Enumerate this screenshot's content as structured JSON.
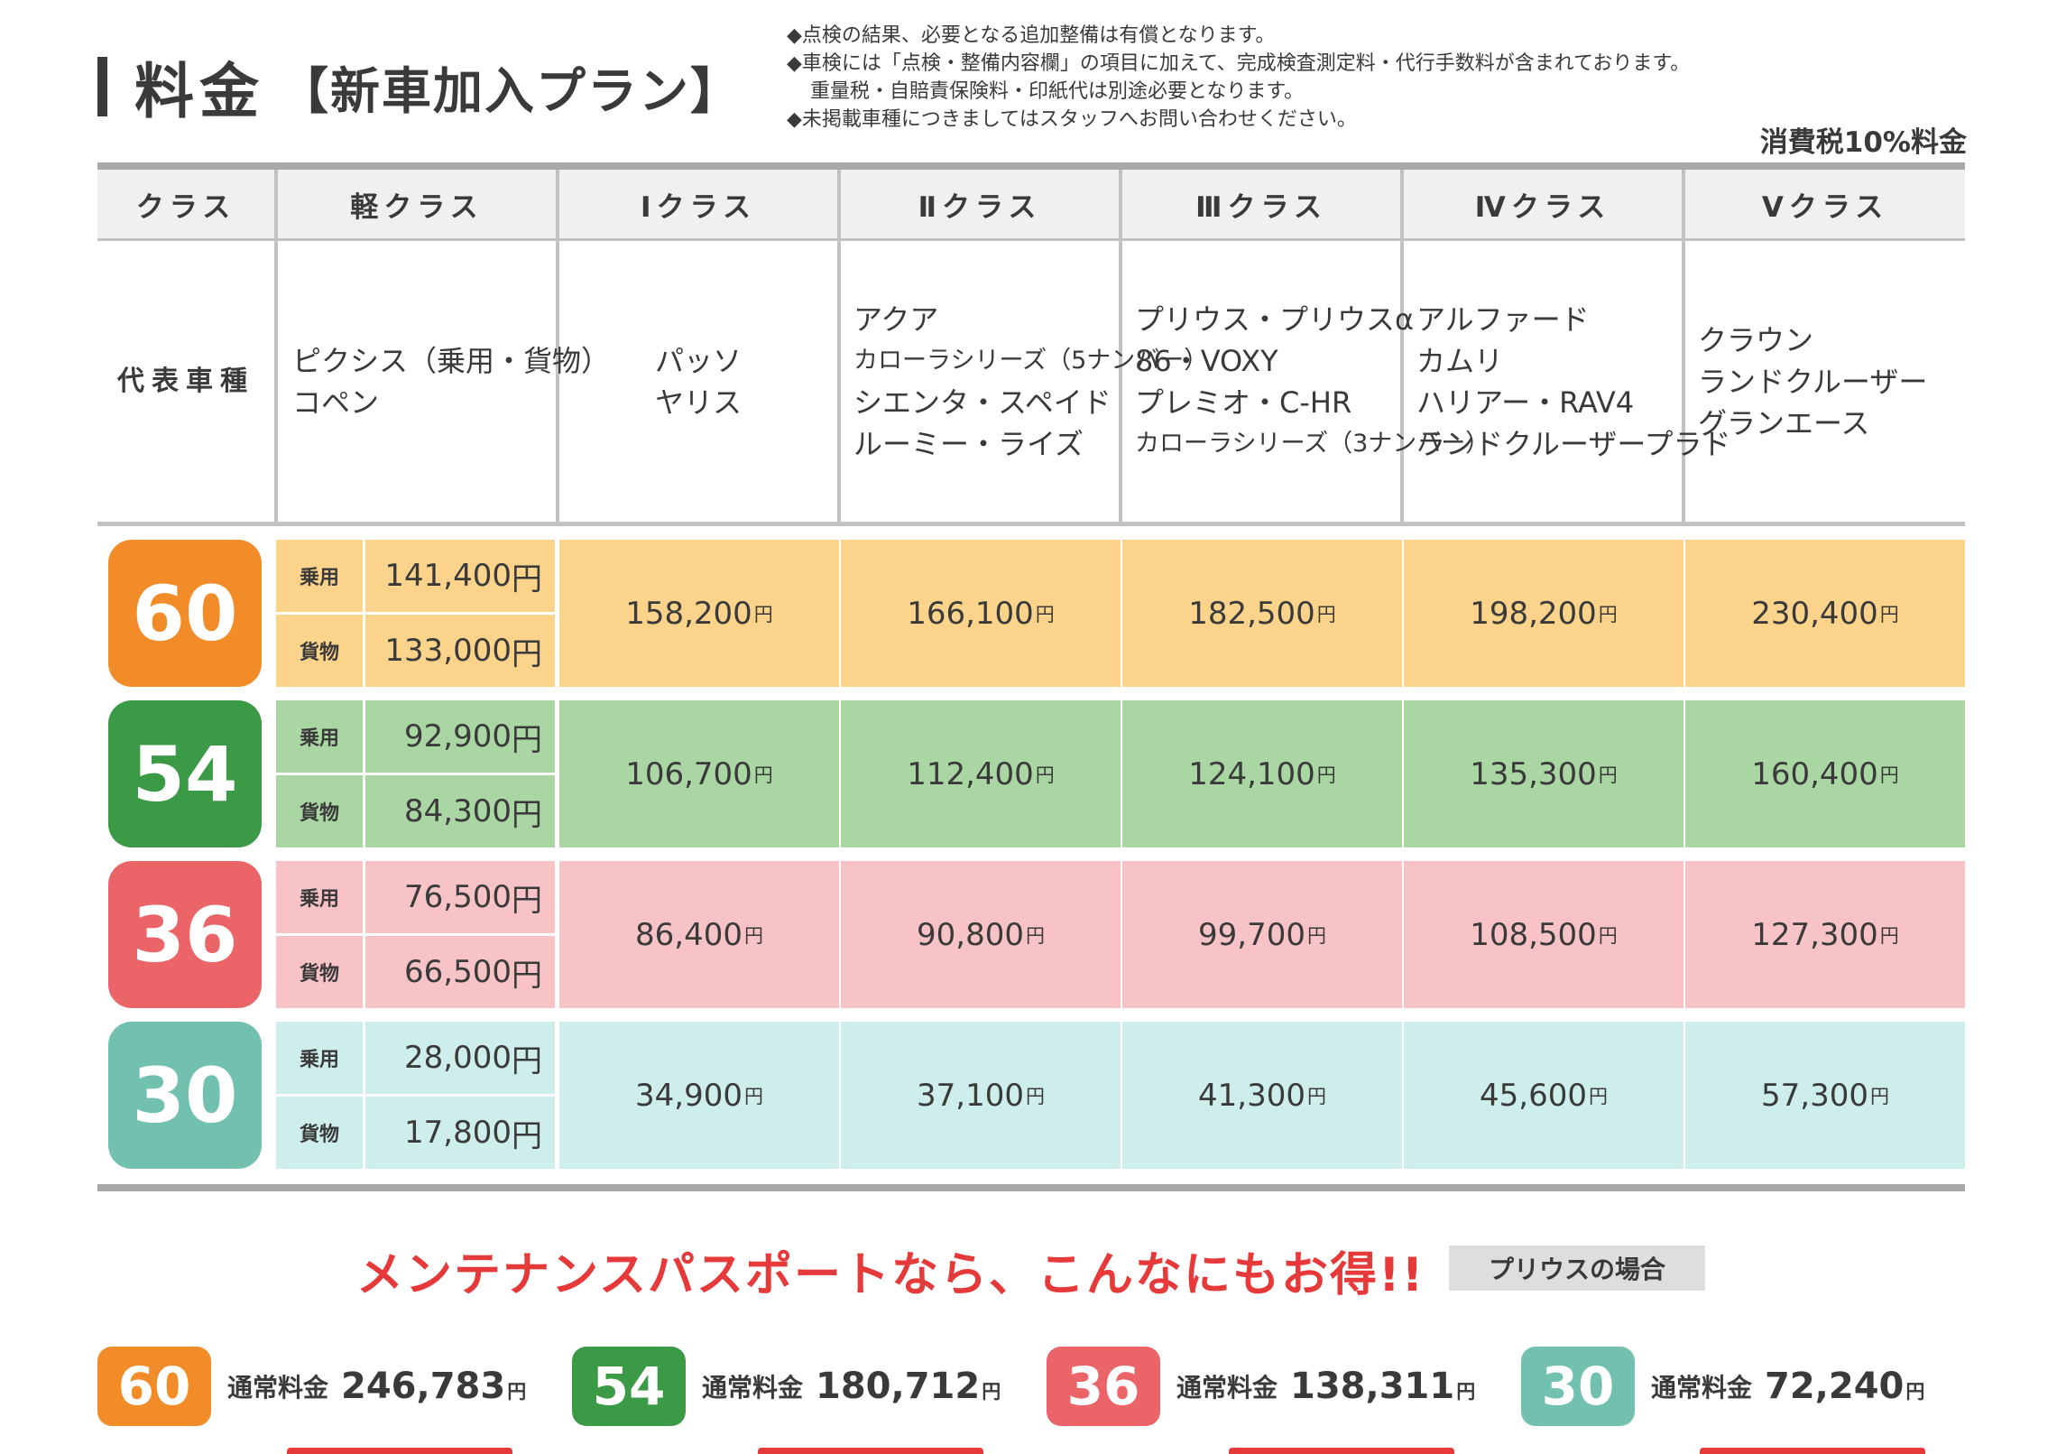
{
  "title": {
    "main": "料金",
    "sub": "【新車加入プラン】"
  },
  "notes": [
    "◆点検の結果、必要となる追加整備は有償となります。",
    "◆車検には「点検・整備内容欄」の項目に加えて、完成検査測定料・代行手数料が含まれております。",
    "重量税・自賠責保険料・印紙代は別途必要となります。",
    "◆未掲載車種につきましてはスタッフへお問い合わせください。"
  ],
  "tax_label": "消費税10%料金",
  "yen": "円",
  "header": {
    "class_label": "クラス",
    "classes": [
      "軽クラス",
      "Ⅰクラス",
      "Ⅱクラス",
      "Ⅲクラス",
      "Ⅳクラス",
      "Ⅴクラス"
    ]
  },
  "vehicles": {
    "label": "代表車種",
    "kei": [
      "ピクシス（乗用・貨物）",
      "コペン"
    ],
    "c1": [
      "パッソ",
      "ヤリス"
    ],
    "c2": [
      "アクア",
      "カローラシリーズ（5ナンバー）",
      "シエンタ・スペイド",
      "ルーミー・ライズ"
    ],
    "c3": [
      "プリウス・プリウスα",
      "86・VOXY",
      "プレミオ・C-HR",
      "カローラシリーズ（3ナンバー）"
    ],
    "c4": [
      "アルファード",
      "カムリ",
      "ハリアー・RAV4",
      "ランドクルーザープラド"
    ],
    "c5": [
      "クラウン",
      "ランドクルーザー",
      "グランエース"
    ]
  },
  "sub_labels": {
    "passenger": "乗用",
    "cargo": "貨物"
  },
  "plans": [
    {
      "months": "60",
      "color": "#f28c28",
      "bg": "#fcd38a",
      "kei_passenger": "141,400",
      "kei_cargo": "133,000",
      "prices": [
        "158,200",
        "166,100",
        "182,500",
        "198,200",
        "230,400"
      ]
    },
    {
      "months": "54",
      "color": "#3a9a45",
      "bg": "#a9d6a3",
      "kei_passenger": "92,900",
      "kei_cargo": "84,300",
      "prices": [
        "106,700",
        "112,400",
        "124,100",
        "135,300",
        "160,400"
      ]
    },
    {
      "months": "36",
      "color": "#ea6468",
      "bg": "#f8c3c6",
      "kei_passenger": "76,500",
      "kei_cargo": "66,500",
      "prices": [
        "86,400",
        "90,800",
        "99,700",
        "108,500",
        "127,300"
      ]
    },
    {
      "months": "30",
      "color": "#72c1ae",
      "bg": "#cdeeea",
      "kei_passenger": "28,000",
      "kei_cargo": "17,800",
      "prices": [
        "34,900",
        "37,100",
        "41,300",
        "45,600",
        "57,300"
      ]
    }
  ],
  "promo": {
    "headline": "メンテナンスパスポートなら、こんなにもお得!!",
    "tag": "プリウスの場合"
  },
  "regular": {
    "label": "通常料金",
    "items": [
      {
        "months": "60",
        "price": "246,783"
      },
      {
        "months": "54",
        "price": "180,712"
      },
      {
        "months": "36",
        "price": "138,311"
      },
      {
        "months": "30",
        "price": "72,240"
      }
    ]
  }
}
